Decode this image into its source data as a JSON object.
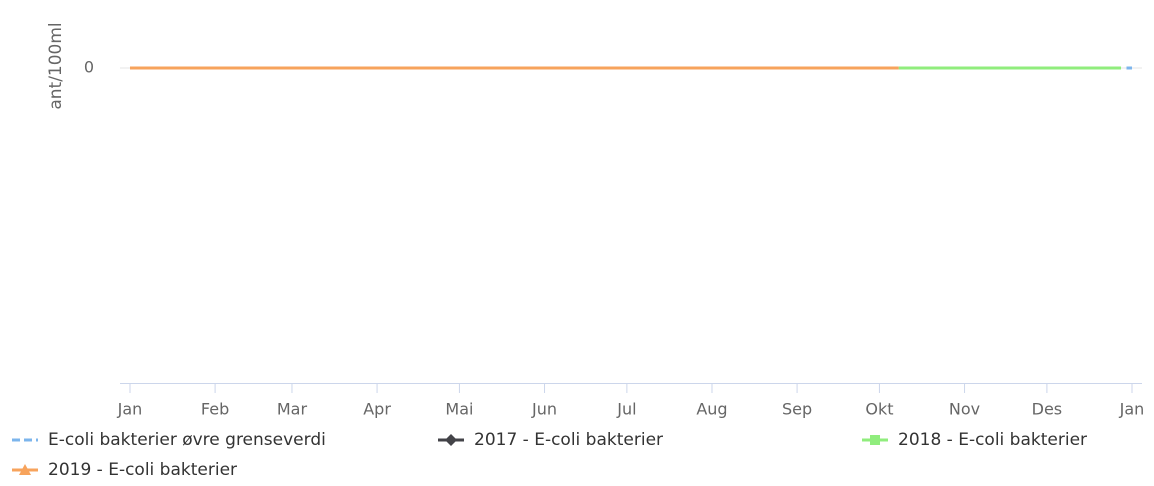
{
  "chart_data": {
    "type": "line",
    "yaxis_label": "ant/100ml",
    "xlim": [
      0,
      365
    ],
    "xticks": [
      {
        "value": 0,
        "label": "Jan"
      },
      {
        "value": 31,
        "label": "Feb"
      },
      {
        "value": 59,
        "label": "Mar"
      },
      {
        "value": 90,
        "label": "Apr"
      },
      {
        "value": 120,
        "label": "Mai"
      },
      {
        "value": 151,
        "label": "Jun"
      },
      {
        "value": 181,
        "label": "Jul"
      },
      {
        "value": 212,
        "label": "Aug"
      },
      {
        "value": 243,
        "label": "Sep"
      },
      {
        "value": 273,
        "label": "Okt"
      },
      {
        "value": 304,
        "label": "Nov"
      },
      {
        "value": 334,
        "label": "Des"
      },
      {
        "value": 365,
        "label": "Jan"
      }
    ],
    "ylim": [
      -1,
      0
    ],
    "yticks": [
      0
    ],
    "series": [
      {
        "name": "E-coli bakterier øvre grenseverdi",
        "color": "#7cb5ec",
        "dash": true,
        "marker": "none",
        "x": [
          363,
          365
        ],
        "values": [
          0,
          0
        ]
      },
      {
        "name": "2017 - E-coli bakterier",
        "color": "#434348",
        "marker": "diamond",
        "x": [],
        "values": []
      },
      {
        "name": "2018 - E-coli bakterier",
        "color": "#90ed7d",
        "marker": "square",
        "x": [
          280,
          361
        ],
        "values": [
          0,
          0
        ]
      },
      {
        "name": "2019 - E-coli bakterier",
        "color": "#f7a35c",
        "marker": "triangle",
        "x": [
          0,
          280
        ],
        "values": [
          0,
          0
        ]
      }
    ]
  }
}
